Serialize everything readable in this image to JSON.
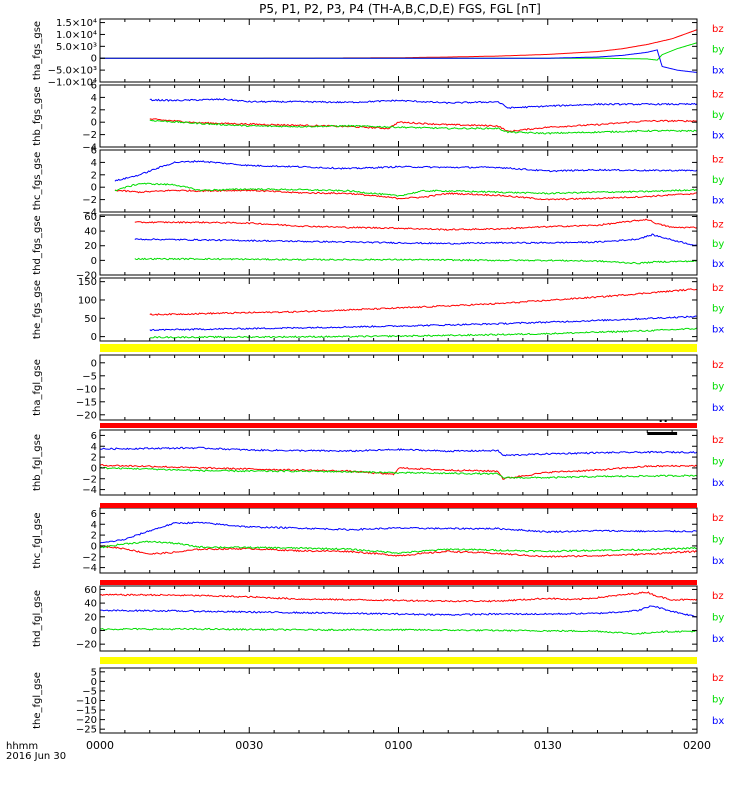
{
  "title": "P5, P1, P2, P3, P4 (TH-A,B,C,D,E) FGS, FGL [nT]",
  "colors": {
    "bx": "#0000ff",
    "by": "#00dd00",
    "bz": "#ff0000",
    "yellow_bar": "#ffff00",
    "red_bar": "#ff0000",
    "axis": "#000000"
  },
  "x_axis": {
    "label_line1": "hhmm",
    "label_line2": "2016 Jun 30",
    "range_minutes": [
      0,
      120
    ],
    "ticks": [
      {
        "value": 0,
        "label": "0000"
      },
      {
        "value": 30,
        "label": "0030"
      },
      {
        "value": 60,
        "label": "0100"
      },
      {
        "value": 90,
        "label": "0130"
      },
      {
        "value": 120,
        "label": "0200"
      }
    ]
  },
  "chart_data": [
    {
      "type": "line",
      "ylabel": "tha_fgs_gse",
      "ylim": [
        -10000,
        16500
      ],
      "yticks": [
        {
          "value": 15000,
          "label": "1.5×10⁴"
        },
        {
          "value": 10000,
          "label": "1.0×10⁴"
        },
        {
          "value": 5000,
          "label": "5.0×10³"
        },
        {
          "value": 0,
          "label": "0"
        },
        {
          "value": -5000,
          "label": "−5.0×10³"
        },
        {
          "value": -10000,
          "label": "−1.0×10⁴"
        }
      ],
      "legend": [
        "bz",
        "by",
        "bx"
      ],
      "series": [
        {
          "name": "bz",
          "x": [
            0,
            20,
            40,
            60,
            70,
            80,
            90,
            100,
            105,
            110,
            115,
            120
          ],
          "values": [
            0,
            0,
            50,
            200,
            500,
            900,
            1600,
            2800,
            4000,
            5800,
            8200,
            12000
          ]
        },
        {
          "name": "by",
          "x": [
            0,
            20,
            40,
            60,
            80,
            100,
            110,
            112,
            113,
            116,
            120
          ],
          "values": [
            0,
            0,
            0,
            0,
            0,
            0,
            -300,
            -800,
            1500,
            4000,
            6500
          ]
        },
        {
          "name": "bx",
          "x": [
            0,
            20,
            40,
            60,
            80,
            90,
            100,
            105,
            110,
            112,
            113,
            116,
            120
          ],
          "values": [
            0,
            0,
            0,
            0,
            0,
            0,
            500,
            1200,
            2500,
            3500,
            -3500,
            -5000,
            -6000
          ]
        }
      ]
    },
    {
      "type": "line",
      "ylabel": "thb_fgs_gse",
      "ylim": [
        -4,
        6
      ],
      "yticks": [
        {
          "value": 6,
          "label": "6"
        },
        {
          "value": 4,
          "label": "4"
        },
        {
          "value": 2,
          "label": "2"
        },
        {
          "value": 0,
          "label": "0"
        },
        {
          "value": -2,
          "label": "−2"
        },
        {
          "value": -4,
          "label": "−4"
        }
      ],
      "legend": [
        "bz",
        "by",
        "bx"
      ],
      "series": [
        {
          "name": "bz",
          "x": [
            10,
            20,
            30,
            40,
            50,
            58,
            60,
            70,
            80,
            82,
            90,
            100,
            110,
            120
          ],
          "values": [
            0.5,
            -0.1,
            -0.3,
            -0.5,
            -0.7,
            -1.0,
            0,
            -0.4,
            -0.6,
            -1.5,
            -0.8,
            -0.4,
            0.2,
            0.2
          ]
        },
        {
          "name": "by",
          "x": [
            10,
            20,
            30,
            40,
            50,
            60,
            70,
            80,
            82,
            90,
            100,
            110,
            120
          ],
          "values": [
            0.3,
            -0.2,
            -0.6,
            -0.7,
            -0.6,
            -0.8,
            -1.0,
            -1.0,
            -1.6,
            -1.8,
            -1.6,
            -1.4,
            -1.4
          ]
        },
        {
          "name": "bx",
          "x": [
            10,
            15,
            25,
            30,
            40,
            50,
            60,
            70,
            80,
            82,
            90,
            100,
            110,
            120
          ],
          "values": [
            3.6,
            3.5,
            3.7,
            3.3,
            3.3,
            3.2,
            3.5,
            3.1,
            3.3,
            2.3,
            2.6,
            2.9,
            2.9,
            2.9
          ]
        }
      ]
    },
    {
      "type": "line",
      "ylabel": "thc_fgs_gse",
      "ylim": [
        -4,
        6
      ],
      "yticks": [
        {
          "value": 6,
          "label": "6"
        },
        {
          "value": 4,
          "label": "4"
        },
        {
          "value": 2,
          "label": "2"
        },
        {
          "value": 0,
          "label": "0"
        },
        {
          "value": -2,
          "label": "−2"
        },
        {
          "value": -4,
          "label": "−4"
        }
      ],
      "legend": [
        "bz",
        "by",
        "bx"
      ],
      "series": [
        {
          "name": "bz",
          "x": [
            3,
            8,
            15,
            20,
            30,
            40,
            50,
            60,
            65,
            70,
            80,
            90,
            100,
            110,
            120
          ],
          "values": [
            -0.5,
            -0.8,
            -0.5,
            -0.6,
            -0.5,
            -0.9,
            -1.0,
            -1.8,
            -1.6,
            -1.0,
            -1.3,
            -2.0,
            -1.8,
            -1.5,
            -1.0
          ]
        },
        {
          "name": "by",
          "x": [
            3,
            8,
            15,
            20,
            30,
            40,
            50,
            60,
            65,
            70,
            80,
            90,
            100,
            110,
            120
          ],
          "values": [
            -0.5,
            0.6,
            0.4,
            -0.5,
            -0.3,
            -0.4,
            -0.6,
            -1.4,
            -0.6,
            -0.6,
            -0.8,
            -1.0,
            -0.8,
            -0.7,
            -0.4
          ]
        },
        {
          "name": "bx",
          "x": [
            3,
            8,
            12,
            15,
            20,
            30,
            40,
            50,
            60,
            70,
            80,
            90,
            100,
            110,
            120
          ],
          "values": [
            1.0,
            2.0,
            3.2,
            4.0,
            4.2,
            3.5,
            3.3,
            3.0,
            3.3,
            3.2,
            3.2,
            2.6,
            2.8,
            2.7,
            2.7
          ]
        }
      ]
    },
    {
      "type": "line",
      "ylabel": "thd_fgs_gse",
      "ylim": [
        -20,
        62
      ],
      "yticks": [
        {
          "value": 60,
          "label": "60"
        },
        {
          "value": 40,
          "label": "40"
        },
        {
          "value": 20,
          "label": "20"
        },
        {
          "value": 0,
          "label": "0"
        },
        {
          "value": -20,
          "label": "−20"
        }
      ],
      "legend": [
        "bz",
        "by",
        "bx"
      ],
      "series": [
        {
          "name": "bz",
          "x": [
            7,
            20,
            30,
            40,
            50,
            60,
            70,
            80,
            90,
            100,
            110,
            112,
            115,
            120
          ],
          "values": [
            52,
            52,
            51,
            47,
            45,
            44,
            42,
            43,
            46,
            48,
            56,
            50,
            45,
            45
          ]
        },
        {
          "name": "by",
          "x": [
            7,
            20,
            30,
            40,
            50,
            60,
            70,
            80,
            90,
            100,
            108,
            112,
            120
          ],
          "values": [
            2,
            2,
            1.5,
            1,
            1,
            1,
            0.5,
            0,
            0,
            -1,
            -4,
            -2,
            -1
          ]
        },
        {
          "name": "bx",
          "x": [
            7,
            20,
            30,
            40,
            50,
            60,
            70,
            80,
            90,
            100,
            108,
            111,
            115,
            120
          ],
          "values": [
            29,
            28,
            27,
            26,
            25,
            24,
            23,
            24,
            24,
            25,
            29,
            35,
            28,
            20
          ]
        }
      ]
    },
    {
      "type": "line",
      "ylabel": "the_fgs_gse",
      "ylim": [
        -12,
        160
      ],
      "yticks": [
        {
          "value": 150,
          "label": "150"
        },
        {
          "value": 100,
          "label": "100"
        },
        {
          "value": 50,
          "label": "50"
        },
        {
          "value": 0,
          "label": "0"
        }
      ],
      "legend": [
        "bz",
        "by",
        "bx"
      ],
      "series": [
        {
          "name": "bz",
          "x": [
            10,
            40,
            60,
            80,
            100,
            120
          ],
          "values": [
            60,
            68,
            78,
            90,
            108,
            130
          ]
        },
        {
          "name": "by",
          "x": [
            10,
            30,
            50,
            70,
            90,
            110,
            120
          ],
          "values": [
            -2,
            -1,
            0,
            3,
            8,
            16,
            22
          ]
        },
        {
          "name": "bx",
          "x": [
            10,
            40,
            60,
            80,
            100,
            120
          ],
          "values": [
            18,
            24,
            29,
            35,
            44,
            55
          ]
        }
      ]
    },
    {
      "type": "line",
      "ylabel": "tha_fgl_gse",
      "ylim": [
        -22,
        3
      ],
      "yticks": [
        {
          "value": 0,
          "label": "0"
        },
        {
          "value": -5,
          "label": "−5"
        },
        {
          "value": -10,
          "label": "−10"
        },
        {
          "value": -15,
          "label": "−15"
        },
        {
          "value": -20,
          "label": "−20"
        }
      ],
      "legend": [
        "bz",
        "by",
        "bx"
      ],
      "series": []
    },
    {
      "type": "line",
      "ylabel": "thb_fgl_gse",
      "ylim": [
        -5,
        7
      ],
      "yticks": [
        {
          "value": 6,
          "label": "6"
        },
        {
          "value": 4,
          "label": "4"
        },
        {
          "value": 2,
          "label": "2"
        },
        {
          "value": 0,
          "label": "0"
        },
        {
          "value": -2,
          "label": "−2"
        },
        {
          "value": -4,
          "label": "−4"
        }
      ],
      "legend": [
        "bz",
        "by",
        "bx"
      ],
      "series": [
        {
          "name": "bz",
          "x": [
            0,
            10,
            20,
            30,
            40,
            50,
            59,
            60,
            70,
            80,
            81,
            90,
            100,
            110,
            120
          ],
          "values": [
            0.5,
            0.3,
            0,
            -0.2,
            -0.4,
            -0.6,
            -1.2,
            0,
            -0.4,
            -0.6,
            -2.0,
            -0.8,
            -0.4,
            0.3,
            0.4
          ]
        },
        {
          "name": "by",
          "x": [
            0,
            10,
            20,
            30,
            40,
            50,
            60,
            70,
            80,
            81,
            90,
            100,
            110,
            120
          ],
          "values": [
            0,
            -0.2,
            -0.5,
            -0.6,
            -0.6,
            -0.7,
            -0.9,
            -1.0,
            -1.1,
            -1.8,
            -1.8,
            -1.6,
            -1.5,
            -1.4
          ]
        },
        {
          "name": "bx",
          "x": [
            0,
            10,
            20,
            30,
            40,
            50,
            60,
            70,
            80,
            81,
            90,
            100,
            110,
            120
          ],
          "values": [
            3.5,
            3.6,
            3.7,
            3.3,
            3.2,
            3.1,
            3.4,
            3.1,
            3.2,
            2.3,
            2.6,
            2.8,
            2.9,
            2.9
          ]
        }
      ]
    },
    {
      "type": "line",
      "ylabel": "thc_fgl_gse",
      "ylim": [
        -5,
        7
      ],
      "yticks": [
        {
          "value": 6,
          "label": "6"
        },
        {
          "value": 4,
          "label": "4"
        },
        {
          "value": 2,
          "label": "2"
        },
        {
          "value": 0,
          "label": "0"
        },
        {
          "value": -2,
          "label": "−2"
        },
        {
          "value": -4,
          "label": "−4"
        }
      ],
      "legend": [
        "bz",
        "by",
        "bx"
      ],
      "series": [
        {
          "name": "bz",
          "x": [
            0,
            5,
            10,
            15,
            20,
            30,
            40,
            50,
            60,
            70,
            80,
            90,
            100,
            110,
            120
          ],
          "values": [
            0,
            -0.5,
            -1.5,
            -1.2,
            -0.6,
            -0.5,
            -0.9,
            -1.0,
            -1.8,
            -1.0,
            -1.4,
            -2.0,
            -1.8,
            -1.5,
            -1.0
          ]
        },
        {
          "name": "by",
          "x": [
            0,
            5,
            10,
            15,
            20,
            30,
            40,
            50,
            60,
            70,
            80,
            90,
            100,
            110,
            120
          ],
          "values": [
            -0.3,
            0.4,
            0.8,
            0.5,
            -0.2,
            -0.3,
            -0.4,
            -0.6,
            -1.3,
            -0.6,
            -0.8,
            -1.0,
            -0.8,
            -0.7,
            -0.4
          ]
        },
        {
          "name": "bx",
          "x": [
            0,
            5,
            10,
            15,
            20,
            30,
            40,
            50,
            60,
            70,
            80,
            90,
            100,
            110,
            120
          ],
          "values": [
            0.5,
            1.2,
            2.8,
            4.2,
            4.3,
            3.5,
            3.3,
            3.0,
            3.3,
            3.2,
            3.2,
            2.6,
            2.8,
            2.7,
            2.7
          ]
        }
      ]
    },
    {
      "type": "line",
      "ylabel": "thd_fgl_gse",
      "ylim": [
        -30,
        65
      ],
      "yticks": [
        {
          "value": 60,
          "label": "60"
        },
        {
          "value": 40,
          "label": "40"
        },
        {
          "value": 20,
          "label": "20"
        },
        {
          "value": 0,
          "label": "0"
        },
        {
          "value": -20,
          "label": "−20"
        }
      ],
      "legend": [
        "bz",
        "by",
        "bx"
      ],
      "series": [
        {
          "name": "bz",
          "x": [
            0,
            10,
            20,
            30,
            40,
            50,
            60,
            70,
            80,
            90,
            95,
            100,
            110,
            112,
            115,
            120
          ],
          "values": [
            52,
            52,
            51,
            49,
            46,
            45,
            44,
            43,
            43,
            47,
            45,
            48,
            56,
            50,
            45,
            45
          ]
        },
        {
          "name": "by",
          "x": [
            0,
            20,
            40,
            60,
            80,
            100,
            108,
            112,
            120
          ],
          "values": [
            2,
            2,
            1,
            1,
            0,
            -1,
            -5,
            -2,
            -1
          ]
        },
        {
          "name": "bx",
          "x": [
            0,
            10,
            20,
            30,
            40,
            50,
            60,
            70,
            80,
            90,
            100,
            108,
            111,
            115,
            120
          ],
          "values": [
            29,
            29,
            28,
            27,
            26,
            25,
            24,
            23,
            24,
            24,
            25,
            29,
            36,
            28,
            20
          ]
        }
      ]
    },
    {
      "type": "line",
      "ylabel": "the_fgl_gse",
      "ylim": [
        -27,
        7
      ],
      "yticks": [
        {
          "value": 5,
          "label": "5"
        },
        {
          "value": 0,
          "label": "0"
        },
        {
          "value": -5,
          "label": "−5"
        },
        {
          "value": -10,
          "label": "−10"
        },
        {
          "value": -15,
          "label": "−15"
        },
        {
          "value": -20,
          "label": "−20"
        },
        {
          "value": -25,
          "label": "−25"
        }
      ],
      "legend": [
        "bz",
        "by",
        "bx"
      ],
      "series": []
    }
  ]
}
